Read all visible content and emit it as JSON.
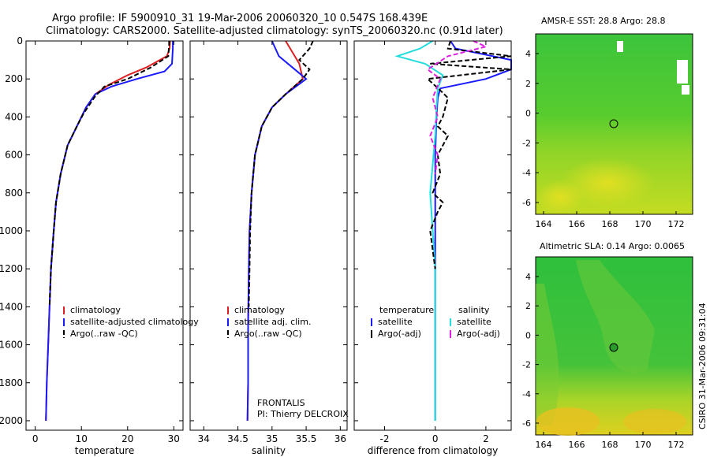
{
  "header": {
    "title_line1": "Argo profile: IF 5900910_31 19-Mar-2006 20060320_10 0.547S 168.439E",
    "title_line2": "Climatology: CARS2000. Satellite-adjusted climatology: synTS_20060320.nc (0.91d later)"
  },
  "side_label": "CSIRO 31-Mar-2006 09:31:04",
  "colors": {
    "climatology": "#e02020",
    "satellite": "#1a1aff",
    "argo": "#000000",
    "sal_satellite": "#22dddd",
    "sal_argo": "#e020e0"
  },
  "chart_data": [
    {
      "id": "temperature",
      "type": "line",
      "xlabel": "temperature",
      "xlim": [
        -2,
        32
      ],
      "ylim": [
        2050,
        0
      ],
      "xticks": [
        0,
        10,
        20,
        30
      ],
      "xtick_labels": [
        "0",
        "10",
        "20",
        "30"
      ],
      "yticks": [
        0,
        200,
        400,
        600,
        800,
        1000,
        1200,
        1400,
        1600,
        1800,
        2000
      ],
      "ytick_labels": [
        "0",
        "200",
        "400",
        "600",
        "800",
        "1000",
        "1200",
        "1400",
        "1600",
        "1800",
        "2000"
      ],
      "legend": [
        "climatology",
        "satellite-adjusted climatology",
        "Argo(..raw -QC)"
      ],
      "series": [
        {
          "name": "climatology",
          "color": "#e02020",
          "dash": "",
          "x": [
            29.2,
            29.1,
            28.5,
            24,
            20,
            16,
            13,
            11,
            9,
            7,
            5.5,
            4.5,
            4,
            3.4,
            3.1,
            2.8,
            2.5,
            2.3
          ],
          "y": [
            0,
            40,
            80,
            140,
            180,
            230,
            280,
            350,
            450,
            550,
            700,
            850,
            1000,
            1200,
            1400,
            1600,
            1800,
            2000
          ]
        },
        {
          "name": "satellite-adjusted climatology",
          "color": "#1a1aff",
          "dash": "",
          "x": [
            29.8,
            29.8,
            29.6,
            28,
            22,
            16.5,
            13,
            11,
            9,
            7,
            5.5,
            4.5,
            4,
            3.4,
            3.1,
            2.8,
            2.5,
            2.3
          ],
          "y": [
            0,
            40,
            120,
            160,
            200,
            240,
            280,
            350,
            450,
            550,
            700,
            850,
            1000,
            1200,
            1400,
            1600,
            1800,
            2000
          ]
        },
        {
          "name": "Argo(..raw -QC)",
          "color": "#000000",
          "dash": "6,3",
          "x": [
            29,
            29,
            28.8,
            25,
            20,
            15,
            13,
            10.5,
            9,
            7,
            5.5,
            4.5,
            4,
            3.4,
            3.1
          ],
          "y": [
            0,
            20,
            80,
            140,
            200,
            240,
            290,
            380,
            450,
            550,
            700,
            850,
            1000,
            1200,
            1400
          ]
        }
      ]
    },
    {
      "id": "salinity",
      "type": "line",
      "xlabel": "salinity",
      "xlim": [
        33.8,
        36.1
      ],
      "ylim": [
        2050,
        0
      ],
      "xticks": [
        34,
        34.5,
        35,
        35.5,
        36
      ],
      "xtick_labels": [
        "34",
        "34.5",
        "35",
        "35.5",
        "36"
      ],
      "legend": [
        "climatology",
        "satellite adj. clim.",
        "Argo(..raw -QC)"
      ],
      "annotation": [
        "FRONTALIS",
        "PI: Thierry DELCROIX"
      ],
      "series": [
        {
          "name": "climatology",
          "color": "#e02020",
          "dash": "",
          "x": [
            35.2,
            35.3,
            35.4,
            35.45,
            35.2,
            35.0,
            34.85,
            34.75,
            34.7,
            34.67,
            34.66,
            34.65,
            34.65,
            34.64
          ],
          "y": [
            0,
            60,
            120,
            200,
            280,
            350,
            450,
            600,
            800,
            1000,
            1200,
            1500,
            1800,
            2000
          ]
        },
        {
          "name": "satellite adj. clim.",
          "color": "#1a1aff",
          "dash": "",
          "x": [
            35.0,
            35.1,
            35.3,
            35.5,
            35.2,
            35.0,
            34.85,
            34.75,
            34.7,
            34.67,
            34.66,
            34.65,
            34.65,
            34.64
          ],
          "y": [
            0,
            80,
            140,
            200,
            280,
            350,
            450,
            600,
            800,
            1000,
            1200,
            1500,
            1800,
            2000
          ]
        },
        {
          "name": "Argo(..raw -QC)",
          "color": "#000000",
          "dash": "6,3",
          "x": [
            35.6,
            35.55,
            35.4,
            35.55,
            35.45,
            35.2,
            35.0,
            34.85,
            34.75,
            34.7,
            34.68,
            34.67,
            34.66
          ],
          "y": [
            0,
            40,
            100,
            150,
            200,
            280,
            350,
            450,
            600,
            800,
            1000,
            1200,
            1400
          ]
        }
      ]
    },
    {
      "id": "difference",
      "type": "line",
      "xlabel": "difference from climatology",
      "xlim": [
        -3.2,
        3.0
      ],
      "ylim": [
        2050,
        0
      ],
      "xticks": [
        -2,
        0,
        2
      ],
      "xtick_labels": [
        "-2",
        "0",
        "2"
      ],
      "legend_temperature": {
        "heading": "temperature",
        "items": [
          "satellite",
          "Argo(-adj)"
        ]
      },
      "legend_salinity": {
        "heading": "salinity",
        "items": [
          "satellite",
          "Argo(-adj)"
        ]
      },
      "series": [
        {
          "name": "temperature satellite",
          "color": "#1a1aff",
          "dash": "",
          "x": [
            0.6,
            0.8,
            3.0,
            3.0,
            2.0,
            0.2,
            0.1,
            0.05,
            0,
            0,
            0,
            0,
            0
          ],
          "y": [
            0,
            40,
            100,
            150,
            200,
            250,
            300,
            400,
            600,
            800,
            1200,
            1600,
            2000
          ]
        },
        {
          "name": "salinity satellite",
          "color": "#22dddd",
          "dash": "",
          "x": [
            -0.1,
            -0.6,
            -1.5,
            -0.4,
            0.3,
            0.1,
            0.05,
            0.0,
            -0.2,
            -0.1,
            0,
            0
          ],
          "y": [
            0,
            40,
            80,
            120,
            180,
            250,
            350,
            500,
            800,
            1000,
            1200,
            2000
          ]
        },
        {
          "name": "temperature Argo(-adj)",
          "color": "#000000",
          "dash": "6,3",
          "x": [
            0.6,
            0.5,
            3.0,
            -0.2,
            3.0,
            -0.3,
            0.2,
            0.5,
            0.4,
            0.3,
            0.1,
            0.5,
            0.1,
            0.2,
            -0.1,
            0.3,
            0.1,
            -0.2,
            -0.1,
            0
          ],
          "y": [
            0,
            40,
            80,
            120,
            150,
            200,
            260,
            300,
            350,
            400,
            450,
            500,
            600,
            700,
            800,
            850,
            900,
            1000,
            1100,
            1200
          ]
        },
        {
          "name": "salinity Argo(-adj)",
          "color": "#e020e0",
          "dash": "6,3",
          "x": [
            1.5,
            2.0,
            0.5,
            -0.3,
            0.2,
            -0.1,
            0.1,
            -0.2,
            0.1,
            0
          ],
          "y": [
            0,
            30,
            80,
            150,
            200,
            300,
            400,
            500,
            600,
            700
          ]
        }
      ]
    }
  ],
  "maps": [
    {
      "id": "sst",
      "title": "AMSR-E SST: 28.8 Argo: 28.8",
      "xticks": [
        "164",
        "166",
        "168",
        "170",
        "172"
      ],
      "yticks": [
        "4",
        "2",
        "0",
        "-2",
        "-4",
        "-6"
      ]
    },
    {
      "id": "sla",
      "title": "Altimetric SLA: 0.14 Argo: 0.0065",
      "xticks": [
        "164",
        "166",
        "168",
        "170",
        "172"
      ],
      "yticks": [
        "4",
        "2",
        "0",
        "-2",
        "-4",
        "-6"
      ]
    }
  ]
}
